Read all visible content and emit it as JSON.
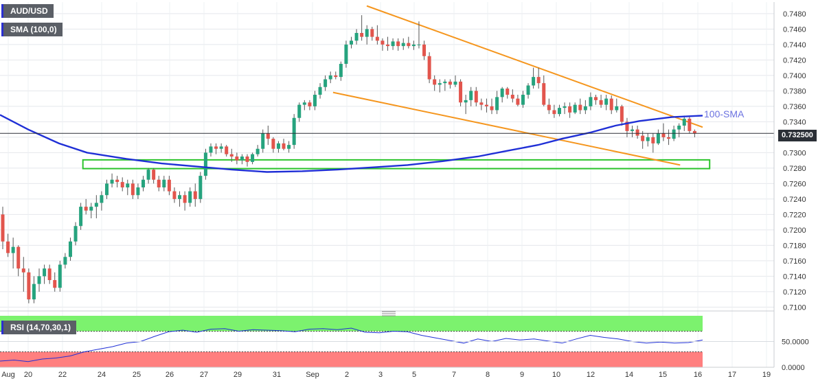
{
  "symbol": "AUD/USD",
  "indicator_label": "SMA (100,0)",
  "rsi_label": "RSI (14,70,30,1)",
  "current_price": "0.732500",
  "colors": {
    "up": "#26a37e",
    "down": "#e2554d",
    "sma": "#1f2fd6",
    "trendline": "#f5961e",
    "zone": "#2cc42c",
    "rsi_line": "#1f2fd6",
    "rsi_overbought": "#7cf26e",
    "rsi_oversold": "#ff7f7f"
  },
  "chart_data": [
    {
      "type": "candlestick",
      "title": "AUD/USD",
      "ylim": [
        0.7095,
        0.7495
      ],
      "y_ticks": [
        "0.7100",
        "0.7120",
        "0.7140",
        "0.7160",
        "0.7180",
        "0.7200",
        "0.7220",
        "0.7240",
        "0.7260",
        "0.7280",
        "0.7300",
        "0.7320",
        "0.7340",
        "0.7360",
        "0.7380",
        "0.7400",
        "0.7420",
        "0.7440",
        "0.7460",
        "0.7480"
      ],
      "x_ticks": [
        "Aug",
        "20",
        "22",
        "24",
        "25",
        "26",
        "27",
        "29",
        "31",
        "Sep",
        "2",
        "3",
        "5",
        "7",
        "8",
        "9",
        "10",
        "12",
        "14",
        "15",
        "16",
        "17",
        "19"
      ],
      "ohlc": [
        [
          0.722,
          0.723,
          0.7175,
          0.7185
        ],
        [
          0.7185,
          0.7195,
          0.7165,
          0.717
        ],
        [
          0.717,
          0.719,
          0.715,
          0.7178
        ],
        [
          0.7178,
          0.718,
          0.714,
          0.715
        ],
        [
          0.715,
          0.7165,
          0.712,
          0.7145
        ],
        [
          0.7145,
          0.715,
          0.7105,
          0.711
        ],
        [
          0.711,
          0.714,
          0.7105,
          0.713
        ],
        [
          0.713,
          0.715,
          0.712,
          0.714
        ],
        [
          0.714,
          0.7155,
          0.713,
          0.715
        ],
        [
          0.715,
          0.7155,
          0.713,
          0.7135
        ],
        [
          0.7135,
          0.7145,
          0.712,
          0.7125
        ],
        [
          0.7125,
          0.716,
          0.712,
          0.7155
        ],
        [
          0.7155,
          0.717,
          0.715,
          0.7165
        ],
        [
          0.7165,
          0.719,
          0.716,
          0.7185
        ],
        [
          0.7185,
          0.721,
          0.718,
          0.7205
        ],
        [
          0.7205,
          0.7235,
          0.72,
          0.723
        ],
        [
          0.723,
          0.724,
          0.722,
          0.7225
        ],
        [
          0.7225,
          0.7235,
          0.7215,
          0.723
        ],
        [
          0.723,
          0.7245,
          0.7215,
          0.7235
        ],
        [
          0.7235,
          0.725,
          0.7225,
          0.7245
        ],
        [
          0.7245,
          0.7265,
          0.724,
          0.726
        ],
        [
          0.726,
          0.7273,
          0.7255,
          0.7265
        ],
        [
          0.7265,
          0.727,
          0.7255,
          0.7262
        ],
        [
          0.7262,
          0.7268,
          0.725,
          0.7255
        ],
        [
          0.7255,
          0.7265,
          0.7245,
          0.726
        ],
        [
          0.726,
          0.7265,
          0.724,
          0.7245
        ],
        [
          0.7245,
          0.726,
          0.724,
          0.7255
        ],
        [
          0.7255,
          0.727,
          0.725,
          0.7265
        ],
        [
          0.7265,
          0.728,
          0.726,
          0.7278
        ],
        [
          0.7278,
          0.728,
          0.726,
          0.7265
        ],
        [
          0.7265,
          0.727,
          0.725,
          0.7255
        ],
        [
          0.7255,
          0.727,
          0.725,
          0.7265
        ],
        [
          0.7265,
          0.727,
          0.7245,
          0.725
        ],
        [
          0.725,
          0.7255,
          0.7235,
          0.724
        ],
        [
          0.724,
          0.725,
          0.723,
          0.7245
        ],
        [
          0.7245,
          0.725,
          0.7225,
          0.7235
        ],
        [
          0.7235,
          0.7255,
          0.723,
          0.725
        ],
        [
          0.725,
          0.726,
          0.723,
          0.724
        ],
        [
          0.724,
          0.7275,
          0.7235,
          0.727
        ],
        [
          0.727,
          0.7305,
          0.7265,
          0.73
        ],
        [
          0.73,
          0.7312,
          0.7295,
          0.7308
        ],
        [
          0.7308,
          0.7312,
          0.7298,
          0.7305
        ],
        [
          0.7305,
          0.7312,
          0.73,
          0.7308
        ],
        [
          0.7308,
          0.731,
          0.7295,
          0.7298
        ],
        [
          0.7298,
          0.7305,
          0.7288,
          0.7295
        ],
        [
          0.7295,
          0.73,
          0.7285,
          0.729
        ],
        [
          0.729,
          0.7298,
          0.7285,
          0.7295
        ],
        [
          0.7295,
          0.7298,
          0.7282,
          0.7288
        ],
        [
          0.7288,
          0.73,
          0.7285,
          0.7298
        ],
        [
          0.7298,
          0.731,
          0.7295,
          0.7305
        ],
        [
          0.7305,
          0.733,
          0.73,
          0.7325
        ],
        [
          0.7325,
          0.7335,
          0.731,
          0.7318
        ],
        [
          0.7318,
          0.732,
          0.73,
          0.7305
        ],
        [
          0.7305,
          0.7315,
          0.73,
          0.7312
        ],
        [
          0.7312,
          0.7318,
          0.7303,
          0.7305
        ],
        [
          0.7305,
          0.7315,
          0.73,
          0.731
        ],
        [
          0.731,
          0.735,
          0.7305,
          0.7345
        ],
        [
          0.7345,
          0.7365,
          0.734,
          0.7362
        ],
        [
          0.7362,
          0.7368,
          0.7355,
          0.7365
        ],
        [
          0.7365,
          0.7368,
          0.7355,
          0.736
        ],
        [
          0.736,
          0.738,
          0.7355,
          0.7375
        ],
        [
          0.7375,
          0.739,
          0.737,
          0.7385
        ],
        [
          0.7385,
          0.74,
          0.738,
          0.7395
        ],
        [
          0.7395,
          0.7405,
          0.739,
          0.74
        ],
        [
          0.74,
          0.7405,
          0.7395,
          0.7398
        ],
        [
          0.7398,
          0.7418,
          0.7393,
          0.7415
        ],
        [
          0.7415,
          0.7445,
          0.741,
          0.744
        ],
        [
          0.744,
          0.745,
          0.7435,
          0.7445
        ],
        [
          0.7445,
          0.746,
          0.744,
          0.7455
        ],
        [
          0.7455,
          0.7478,
          0.7445,
          0.745
        ],
        [
          0.745,
          0.7465,
          0.744,
          0.746
        ],
        [
          0.746,
          0.7463,
          0.7445,
          0.745
        ],
        [
          0.745,
          0.7465,
          0.744,
          0.7445
        ],
        [
          0.7445,
          0.7448,
          0.7432,
          0.744
        ],
        [
          0.744,
          0.745,
          0.7432,
          0.7438
        ],
        [
          0.7438,
          0.7448,
          0.7433,
          0.7444
        ],
        [
          0.7444,
          0.7448,
          0.7432,
          0.7438
        ],
        [
          0.7438,
          0.7448,
          0.7433,
          0.7442
        ],
        [
          0.7442,
          0.745,
          0.7435,
          0.7438
        ],
        [
          0.7438,
          0.7445,
          0.7433,
          0.744
        ],
        [
          0.744,
          0.747,
          0.7435,
          0.744
        ],
        [
          0.744,
          0.7445,
          0.742,
          0.7425
        ],
        [
          0.7425,
          0.743,
          0.739,
          0.7395
        ],
        [
          0.7395,
          0.74,
          0.738,
          0.7388
        ],
        [
          0.7388,
          0.7395,
          0.7378,
          0.739
        ],
        [
          0.739,
          0.7395,
          0.738,
          0.7392
        ],
        [
          0.7392,
          0.7395,
          0.7383,
          0.7388
        ],
        [
          0.7388,
          0.74,
          0.7385,
          0.7392
        ],
        [
          0.7392,
          0.7395,
          0.736,
          0.7365
        ],
        [
          0.7365,
          0.7375,
          0.735,
          0.7368
        ],
        [
          0.7368,
          0.7385,
          0.736,
          0.738
        ],
        [
          0.738,
          0.7385,
          0.736,
          0.7365
        ],
        [
          0.7365,
          0.737,
          0.7355,
          0.7362
        ],
        [
          0.7362,
          0.737,
          0.7352,
          0.736
        ],
        [
          0.736,
          0.737,
          0.735,
          0.7355
        ],
        [
          0.7355,
          0.738,
          0.735,
          0.7372
        ],
        [
          0.7372,
          0.7385,
          0.7365,
          0.7383
        ],
        [
          0.7383,
          0.7385,
          0.737,
          0.7375
        ],
        [
          0.7375,
          0.7382,
          0.7365,
          0.737
        ],
        [
          0.737,
          0.7375,
          0.736,
          0.7362
        ],
        [
          0.7362,
          0.738,
          0.7358,
          0.7375
        ],
        [
          0.7375,
          0.739,
          0.737,
          0.7387
        ],
        [
          0.7387,
          0.741,
          0.7383,
          0.7398
        ],
        [
          0.7398,
          0.741,
          0.7383,
          0.739
        ],
        [
          0.739,
          0.74,
          0.736,
          0.7362
        ],
        [
          0.7362,
          0.737,
          0.735,
          0.7355
        ],
        [
          0.7355,
          0.7362,
          0.7345,
          0.735
        ],
        [
          0.735,
          0.7362,
          0.7347,
          0.7358
        ],
        [
          0.7358,
          0.7365,
          0.735,
          0.736
        ],
        [
          0.736,
          0.7365,
          0.7345,
          0.7352
        ],
        [
          0.7352,
          0.7365,
          0.735,
          0.7362
        ],
        [
          0.7362,
          0.737,
          0.735,
          0.7355
        ],
        [
          0.7355,
          0.7368,
          0.735,
          0.736
        ],
        [
          0.736,
          0.7378,
          0.7355,
          0.7372
        ],
        [
          0.7372,
          0.7375,
          0.7362,
          0.7368
        ],
        [
          0.7368,
          0.7375,
          0.7358,
          0.7362
        ],
        [
          0.7362,
          0.7375,
          0.7355,
          0.737
        ],
        [
          0.737,
          0.7374,
          0.735,
          0.7355
        ],
        [
          0.7355,
          0.737,
          0.7352,
          0.736
        ],
        [
          0.736,
          0.7362,
          0.7335,
          0.734
        ],
        [
          0.734,
          0.7345,
          0.732,
          0.7328
        ],
        [
          0.7328,
          0.7335,
          0.732,
          0.733
        ],
        [
          0.733,
          0.7335,
          0.7318,
          0.7322
        ],
        [
          0.7322,
          0.7328,
          0.7305,
          0.7315
        ],
        [
          0.7315,
          0.7325,
          0.7308,
          0.732
        ],
        [
          0.732,
          0.7325,
          0.73,
          0.7312
        ],
        [
          0.7312,
          0.733,
          0.731,
          0.7325
        ],
        [
          0.7325,
          0.7338,
          0.7315,
          0.732
        ],
        [
          0.732,
          0.733,
          0.731,
          0.7318
        ],
        [
          0.7318,
          0.7335,
          0.7315,
          0.733
        ],
        [
          0.733,
          0.7338,
          0.732,
          0.7335
        ],
        [
          0.7335,
          0.7348,
          0.7328,
          0.7344
        ],
        [
          0.7344,
          0.7346,
          0.7325,
          0.7328
        ],
        [
          0.7328,
          0.733,
          0.732,
          0.7325
        ]
      ],
      "sma_100": [
        [
          0,
          0.7349
        ],
        [
          20,
          0.733
        ],
        [
          42,
          0.7312
        ],
        [
          62,
          0.73
        ],
        [
          90,
          0.7292
        ],
        [
          115,
          0.7286
        ],
        [
          140,
          0.7282
        ],
        [
          165,
          0.7278
        ],
        [
          190,
          0.7275
        ],
        [
          215,
          0.7276
        ],
        [
          240,
          0.7278
        ],
        [
          265,
          0.7281
        ],
        [
          290,
          0.7284
        ],
        [
          315,
          0.7289
        ],
        [
          340,
          0.7295
        ],
        [
          360,
          0.7302
        ],
        [
          383,
          0.731
        ],
        [
          400,
          0.7318
        ],
        [
          420,
          0.7326
        ],
        [
          438,
          0.7335
        ],
        [
          455,
          0.7341
        ],
        [
          478,
          0.7346
        ],
        [
          500,
          0.7348
        ]
      ],
      "sma_label": "100-SMA",
      "trendlines": [
        {
          "name": "upper",
          "points": [
            [
              261,
              0.749
            ],
            [
              500,
              0.7333
            ]
          ]
        },
        {
          "name": "lower",
          "points": [
            [
              237,
              0.7378
            ],
            [
              484,
              0.7284
            ]
          ]
        }
      ],
      "support_zone": {
        "from": 0.7282,
        "to": 0.7288,
        "start": 59,
        "end": 505
      },
      "current_price": 0.7325
    },
    {
      "type": "line",
      "title": "RSI (14,70,30,1)",
      "ylim": [
        0,
        100
      ],
      "y_ticks": [
        "0.0000",
        "50.0000"
      ],
      "overbought": 70,
      "oversold": 30,
      "rsi": [
        [
          0,
          12
        ],
        [
          10,
          14
        ],
        [
          20,
          11
        ],
        [
          30,
          16
        ],
        [
          40,
          18
        ],
        [
          50,
          22
        ],
        [
          60,
          30
        ],
        [
          70,
          35
        ],
        [
          80,
          40
        ],
        [
          90,
          47
        ],
        [
          100,
          50
        ],
        [
          110,
          60
        ],
        [
          120,
          69
        ],
        [
          130,
          72
        ],
        [
          140,
          68
        ],
        [
          150,
          74
        ],
        [
          160,
          75
        ],
        [
          170,
          70
        ],
        [
          180,
          73
        ],
        [
          190,
          72
        ],
        [
          200,
          71
        ],
        [
          210,
          69
        ],
        [
          220,
          74
        ],
        [
          230,
          75
        ],
        [
          240,
          73
        ],
        [
          250,
          76
        ],
        [
          260,
          68
        ],
        [
          270,
          67
        ],
        [
          280,
          70
        ],
        [
          290,
          69
        ],
        [
          300,
          62
        ],
        [
          310,
          57
        ],
        [
          320,
          52
        ],
        [
          330,
          47
        ],
        [
          340,
          55
        ],
        [
          350,
          50
        ],
        [
          360,
          56
        ],
        [
          370,
          53
        ],
        [
          380,
          55
        ],
        [
          390,
          51
        ],
        [
          400,
          47
        ],
        [
          410,
          55
        ],
        [
          420,
          62
        ],
        [
          430,
          58
        ],
        [
          440,
          55
        ],
        [
          450,
          50
        ],
        [
          460,
          47
        ],
        [
          470,
          49
        ],
        [
          480,
          47
        ],
        [
          490,
          48
        ],
        [
          500,
          53
        ]
      ]
    }
  ]
}
